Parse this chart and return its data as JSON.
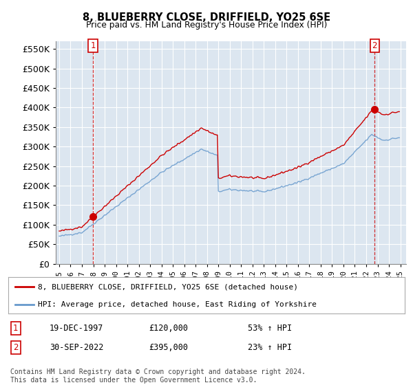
{
  "title": "8, BLUEBERRY CLOSE, DRIFFIELD, YO25 6SE",
  "subtitle": "Price paid vs. HM Land Registry's House Price Index (HPI)",
  "red_label": "8, BLUEBERRY CLOSE, DRIFFIELD, YO25 6SE (detached house)",
  "blue_label": "HPI: Average price, detached house, East Riding of Yorkshire",
  "point1_date": "19-DEC-1997",
  "point1_price": "£120,000",
  "point1_hpi": "53% ↑ HPI",
  "point2_date": "30-SEP-2022",
  "point2_price": "£395,000",
  "point2_hpi": "23% ↑ HPI",
  "footnote": "Contains HM Land Registry data © Crown copyright and database right 2024.\nThis data is licensed under the Open Government Licence v3.0.",
  "ylim": [
    0,
    570000
  ],
  "yticks": [
    0,
    50000,
    100000,
    150000,
    200000,
    250000,
    300000,
    350000,
    400000,
    450000,
    500000,
    550000
  ],
  "red_color": "#cc0000",
  "blue_color": "#6699cc",
  "plot_bg_color": "#dce6f0",
  "fig_bg_color": "#ffffff",
  "grid_color": "#ffffff",
  "purchase1_x": 1997.97,
  "purchase1_y": 120000,
  "purchase2_x": 2022.75,
  "purchase2_y": 395000,
  "xmin": 1995.0,
  "xmax": 2025.5
}
